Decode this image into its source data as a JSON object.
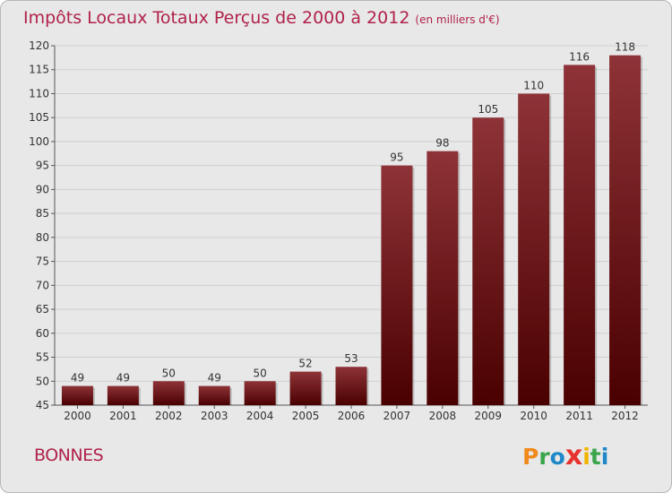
{
  "title": "Impôts Locaux Totaux Perçus de 2000 à 2012",
  "subtitle": "(en milliers d'€)",
  "place": "BONNES",
  "logo": {
    "text": "Proxiti",
    "letters": [
      "P",
      "r",
      "o",
      "x",
      "i",
      "t",
      "i"
    ],
    "colors": [
      "#f08a1c",
      "#3aa54b",
      "#1e88c8",
      "#e8322f",
      "#f0b400",
      "#3aa54b",
      "#1e88c8"
    ]
  },
  "colors": {
    "bar_top": "#8e3338",
    "bar_bottom": "#4a0000",
    "title": "#b0224a",
    "grid": "#cfcfcf",
    "background": "#e8e8e8"
  },
  "chart_data": {
    "type": "bar",
    "title": "Impôts Locaux Totaux Perçus de 2000 à 2012",
    "subtitle": "(en milliers d'€)",
    "categories": [
      "2000",
      "2001",
      "2002",
      "2003",
      "2004",
      "2005",
      "2006",
      "2007",
      "2008",
      "2009",
      "2010",
      "2011",
      "2012"
    ],
    "values": [
      49,
      49,
      50,
      49,
      50,
      52,
      53,
      95,
      98,
      105,
      110,
      116,
      118
    ],
    "ylim": [
      45,
      120
    ],
    "yticks": [
      45,
      50,
      55,
      60,
      65,
      70,
      75,
      80,
      85,
      90,
      95,
      100,
      105,
      110,
      115,
      120
    ],
    "grid": true,
    "data_labels": true
  }
}
